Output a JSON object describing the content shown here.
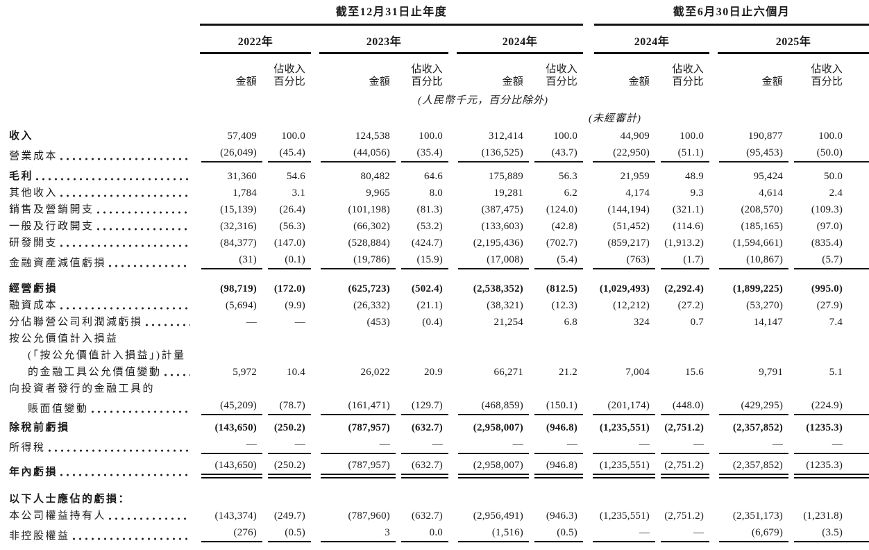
{
  "table": {
    "period_headers": {
      "annual": "截至12月31日止年度",
      "interim": "截至6月30日止六個月"
    },
    "year_headers": [
      "2022年",
      "2023年",
      "2024年",
      "2024年",
      "2025年"
    ],
    "column_subheaders": {
      "amount": "金額",
      "pct_line1": "佔收入",
      "pct_line2": "百分比"
    },
    "notes": {
      "units": "(人民幣千元，百分比除外)",
      "unaudited": "(未經審計)"
    },
    "rows": [
      {
        "label": "收入",
        "bold_label": true,
        "dots": false,
        "underline": null,
        "values": [
          "57,409",
          "100.0",
          "124,538",
          "100.0",
          "312,414",
          "100.0",
          "44,909",
          "100.0",
          "190,877",
          "100.0"
        ]
      },
      {
        "label": "營業成本",
        "dots": true,
        "underline": "single",
        "values": [
          "(26,049)",
          "(45.4)",
          "(44,056)",
          "(35.4)",
          "(136,525)",
          "(43.7)",
          "(22,950)",
          "(51.1)",
          "(95,453)",
          "(50.0)"
        ]
      },
      {
        "label": "毛利",
        "bold_label": true,
        "dots": true,
        "underline": null,
        "values": [
          "31,360",
          "54.6",
          "80,482",
          "64.6",
          "175,889",
          "56.3",
          "21,959",
          "48.9",
          "95,424",
          "50.0"
        ]
      },
      {
        "label": "其他收入",
        "dots": true,
        "underline": null,
        "values": [
          "1,784",
          "3.1",
          "9,965",
          "8.0",
          "19,281",
          "6.2",
          "4,174",
          "9.3",
          "4,614",
          "2.4"
        ]
      },
      {
        "label": "銷售及營銷開支",
        "dots": true,
        "underline": null,
        "values": [
          "(15,139)",
          "(26.4)",
          "(101,198)",
          "(81.3)",
          "(387,475)",
          "(124.0)",
          "(144,194)",
          "(321.1)",
          "(208,570)",
          "(109.3)"
        ]
      },
      {
        "label": "一般及行政開支",
        "dots": true,
        "underline": null,
        "values": [
          "(32,316)",
          "(56.3)",
          "(66,302)",
          "(53.2)",
          "(133,603)",
          "(42.8)",
          "(51,452)",
          "(114.6)",
          "(185,165)",
          "(97.0)"
        ]
      },
      {
        "label": "研發開支",
        "dots": true,
        "underline": null,
        "values": [
          "(84,377)",
          "(147.0)",
          "(528,884)",
          "(424.7)",
          "(2,195,436)",
          "(702.7)",
          "(859,217)",
          "(1,913.2)",
          "(1,594,661)",
          "(835.4)"
        ]
      },
      {
        "label": "金融資產減值虧損",
        "dots": true,
        "underline": "single",
        "values": [
          "(31)",
          "(0.1)",
          "(19,786)",
          "(15.9)",
          "(17,008)",
          "(5.4)",
          "(763)",
          "(1.7)",
          "(10,867)",
          "(5.7)"
        ]
      },
      {
        "label": "經營虧損",
        "bold_label": true,
        "bold_values": true,
        "dots": false,
        "underline": null,
        "values": [
          "(98,719)",
          "(172.0)",
          "(625,723)",
          "(502.4)",
          "(2,538,352)",
          "(812.5)",
          "(1,029,493)",
          "(2,292.4)",
          "(1,899,225)",
          "(995.0)"
        ]
      },
      {
        "label": "融資成本",
        "dots": true,
        "underline": null,
        "values": [
          "(5,694)",
          "(9.9)",
          "(26,332)",
          "(21.1)",
          "(38,321)",
          "(12.3)",
          "(12,212)",
          "(27.2)",
          "(53,270)",
          "(27.9)"
        ]
      },
      {
        "label": "分佔聯營公司利潤減虧損",
        "dots": true,
        "underline": null,
        "values": [
          "—",
          "—",
          "(453)",
          "(0.4)",
          "21,254",
          "6.8",
          "324",
          "0.7",
          "14,147",
          "7.4"
        ]
      },
      {
        "label": "按公允價值計入損益",
        "dots": false,
        "values": null
      },
      {
        "label": "(「按公允價值計入損益」)計量",
        "indent": true,
        "dots": false,
        "values": null
      },
      {
        "label": "的金融工具公允價值變動",
        "indent": true,
        "dots": true,
        "underline": null,
        "values": [
          "5,972",
          "10.4",
          "26,022",
          "20.9",
          "66,271",
          "21.2",
          "7,004",
          "15.6",
          "9,791",
          "5.1"
        ]
      },
      {
        "label": "向投資者發行的金融工具的",
        "dots": false,
        "values": null
      },
      {
        "label": "賬面值變動",
        "indent": true,
        "dots": true,
        "underline": "single",
        "values": [
          "(45,209)",
          "(78.7)",
          "(161,471)",
          "(129.7)",
          "(468,859)",
          "(150.1)",
          "(201,174)",
          "(448.0)",
          "(429,295)",
          "(224.9)"
        ]
      },
      {
        "label": "除稅前虧損",
        "bold_label": true,
        "bold_values": true,
        "dots": false,
        "underline": null,
        "values": [
          "(143,650)",
          "(250.2)",
          "(787,957)",
          "(632.7)",
          "(2,958,007)",
          "(946.8)",
          "(1,235,551)",
          "(2,751.2)",
          "(2,357,852)",
          "(1235.3)"
        ]
      },
      {
        "label": "所得稅",
        "dots": true,
        "underline": "single",
        "values": [
          "—",
          "—",
          "—",
          "—",
          "—",
          "—",
          "—",
          "—",
          "—",
          "—"
        ]
      },
      {
        "label": "年內虧損",
        "bold_label": true,
        "dots": true,
        "underline": "double",
        "values": [
          "(143,650)",
          "(250.2)",
          "(787,957)",
          "(632.7)",
          "(2,958,007)",
          "(946.8)",
          "(1,235,551)",
          "(2,751.2)",
          "(2,357,852)",
          "(1235.3)"
        ]
      },
      {
        "label": "以下人士應佔的虧損：",
        "bold_label": true,
        "dots": false,
        "values": null
      },
      {
        "label": "本公司權益持有人",
        "dots": true,
        "underline": null,
        "values": [
          "(143,374)",
          "(249.7)",
          "(787,960)",
          "(632.7)",
          "(2,956,491)",
          "(946.3)",
          "(1,235,551)",
          "(2,751.2)",
          "(2,351,173)",
          "(1,231.8)"
        ]
      },
      {
        "label": "非控股權益",
        "dots": true,
        "underline": "single",
        "values": [
          "(276)",
          "(0.5)",
          "3",
          "0.0",
          "(1,516)",
          "(0.5)",
          "—",
          "—",
          "(6,679)",
          "(3.5)"
        ]
      }
    ]
  }
}
